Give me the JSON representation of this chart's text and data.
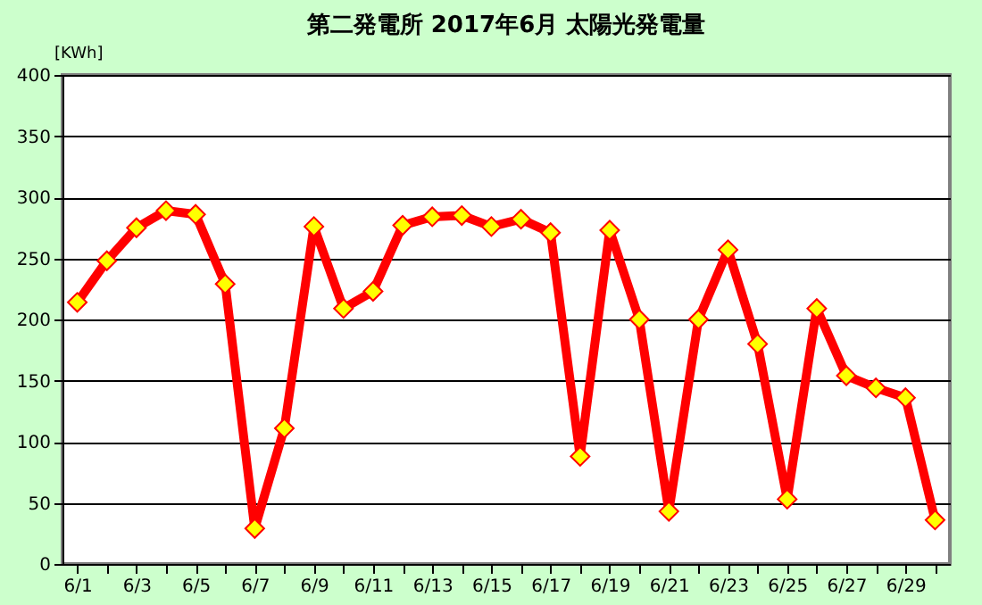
{
  "chart_data": {
    "type": "line",
    "title": "第二発電所  2017年6月 太陽光発電量",
    "ylabel": "[KWh]",
    "categories": [
      "6/1",
      null,
      "6/3",
      null,
      "6/5",
      null,
      "6/7",
      null,
      "6/9",
      null,
      "6/11",
      null,
      "6/13",
      null,
      "6/15",
      null,
      "6/17",
      null,
      "6/19",
      null,
      "6/21",
      null,
      "6/23",
      null,
      "6/25",
      null,
      "6/27",
      null,
      "6/29",
      null
    ],
    "series": [
      {
        "color": "#ff0000",
        "values": [
          214,
          248,
          275,
          289,
          286,
          229,
          29,
          111,
          276,
          209,
          223,
          277,
          284,
          285,
          276,
          282,
          271,
          88,
          273,
          200,
          43,
          200,
          257,
          180,
          53,
          209,
          154,
          144,
          136,
          36
        ]
      }
    ],
    "ylim": [
      0,
      400
    ],
    "yticks": [
      0,
      50,
      100,
      150,
      200,
      250,
      300,
      350,
      400
    ],
    "grid": "y",
    "marker": "diamond",
    "line_style": "solid"
  }
}
